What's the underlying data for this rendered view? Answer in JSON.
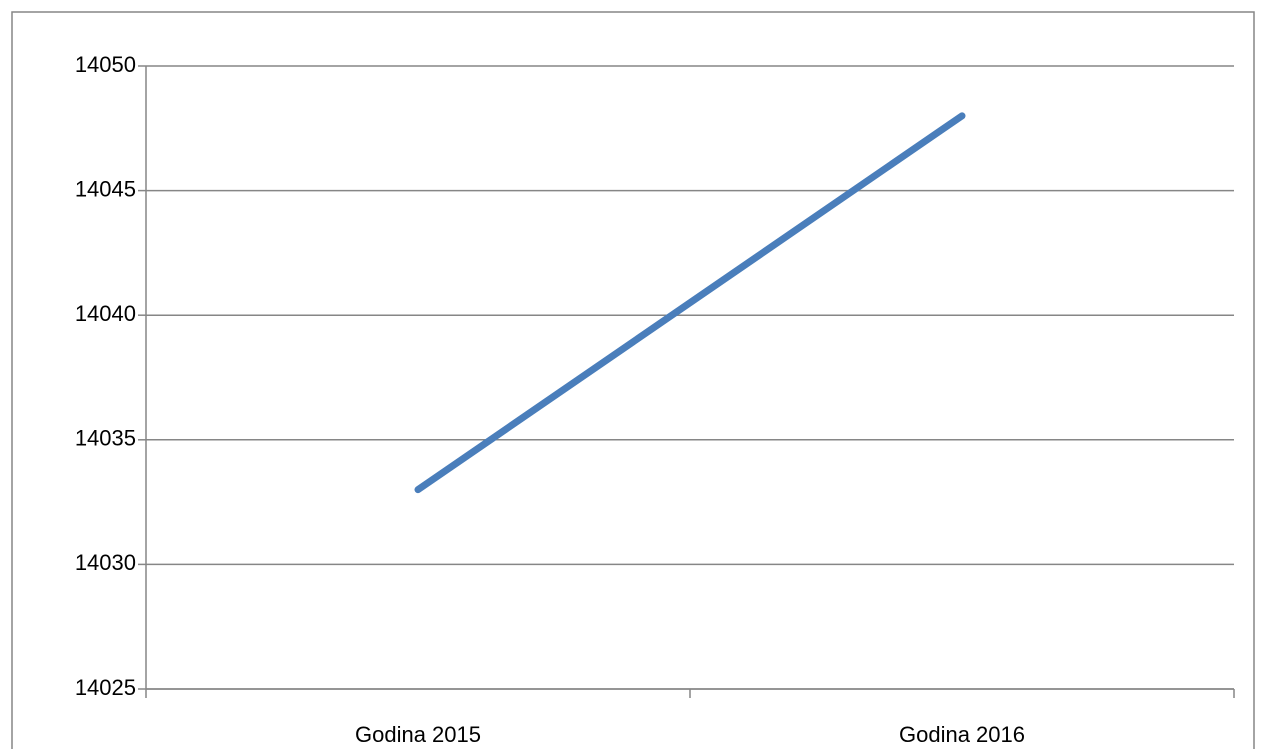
{
  "chart_data": {
    "type": "line",
    "categories": [
      "Godina 2015",
      "Godina 2016"
    ],
    "values": [
      14033,
      14048
    ],
    "color": "#4a7ebb",
    "ylim": [
      14025,
      14050
    ],
    "yticks": [
      14025,
      14030,
      14035,
      14040,
      14045,
      14050
    ],
    "grid": true
  }
}
